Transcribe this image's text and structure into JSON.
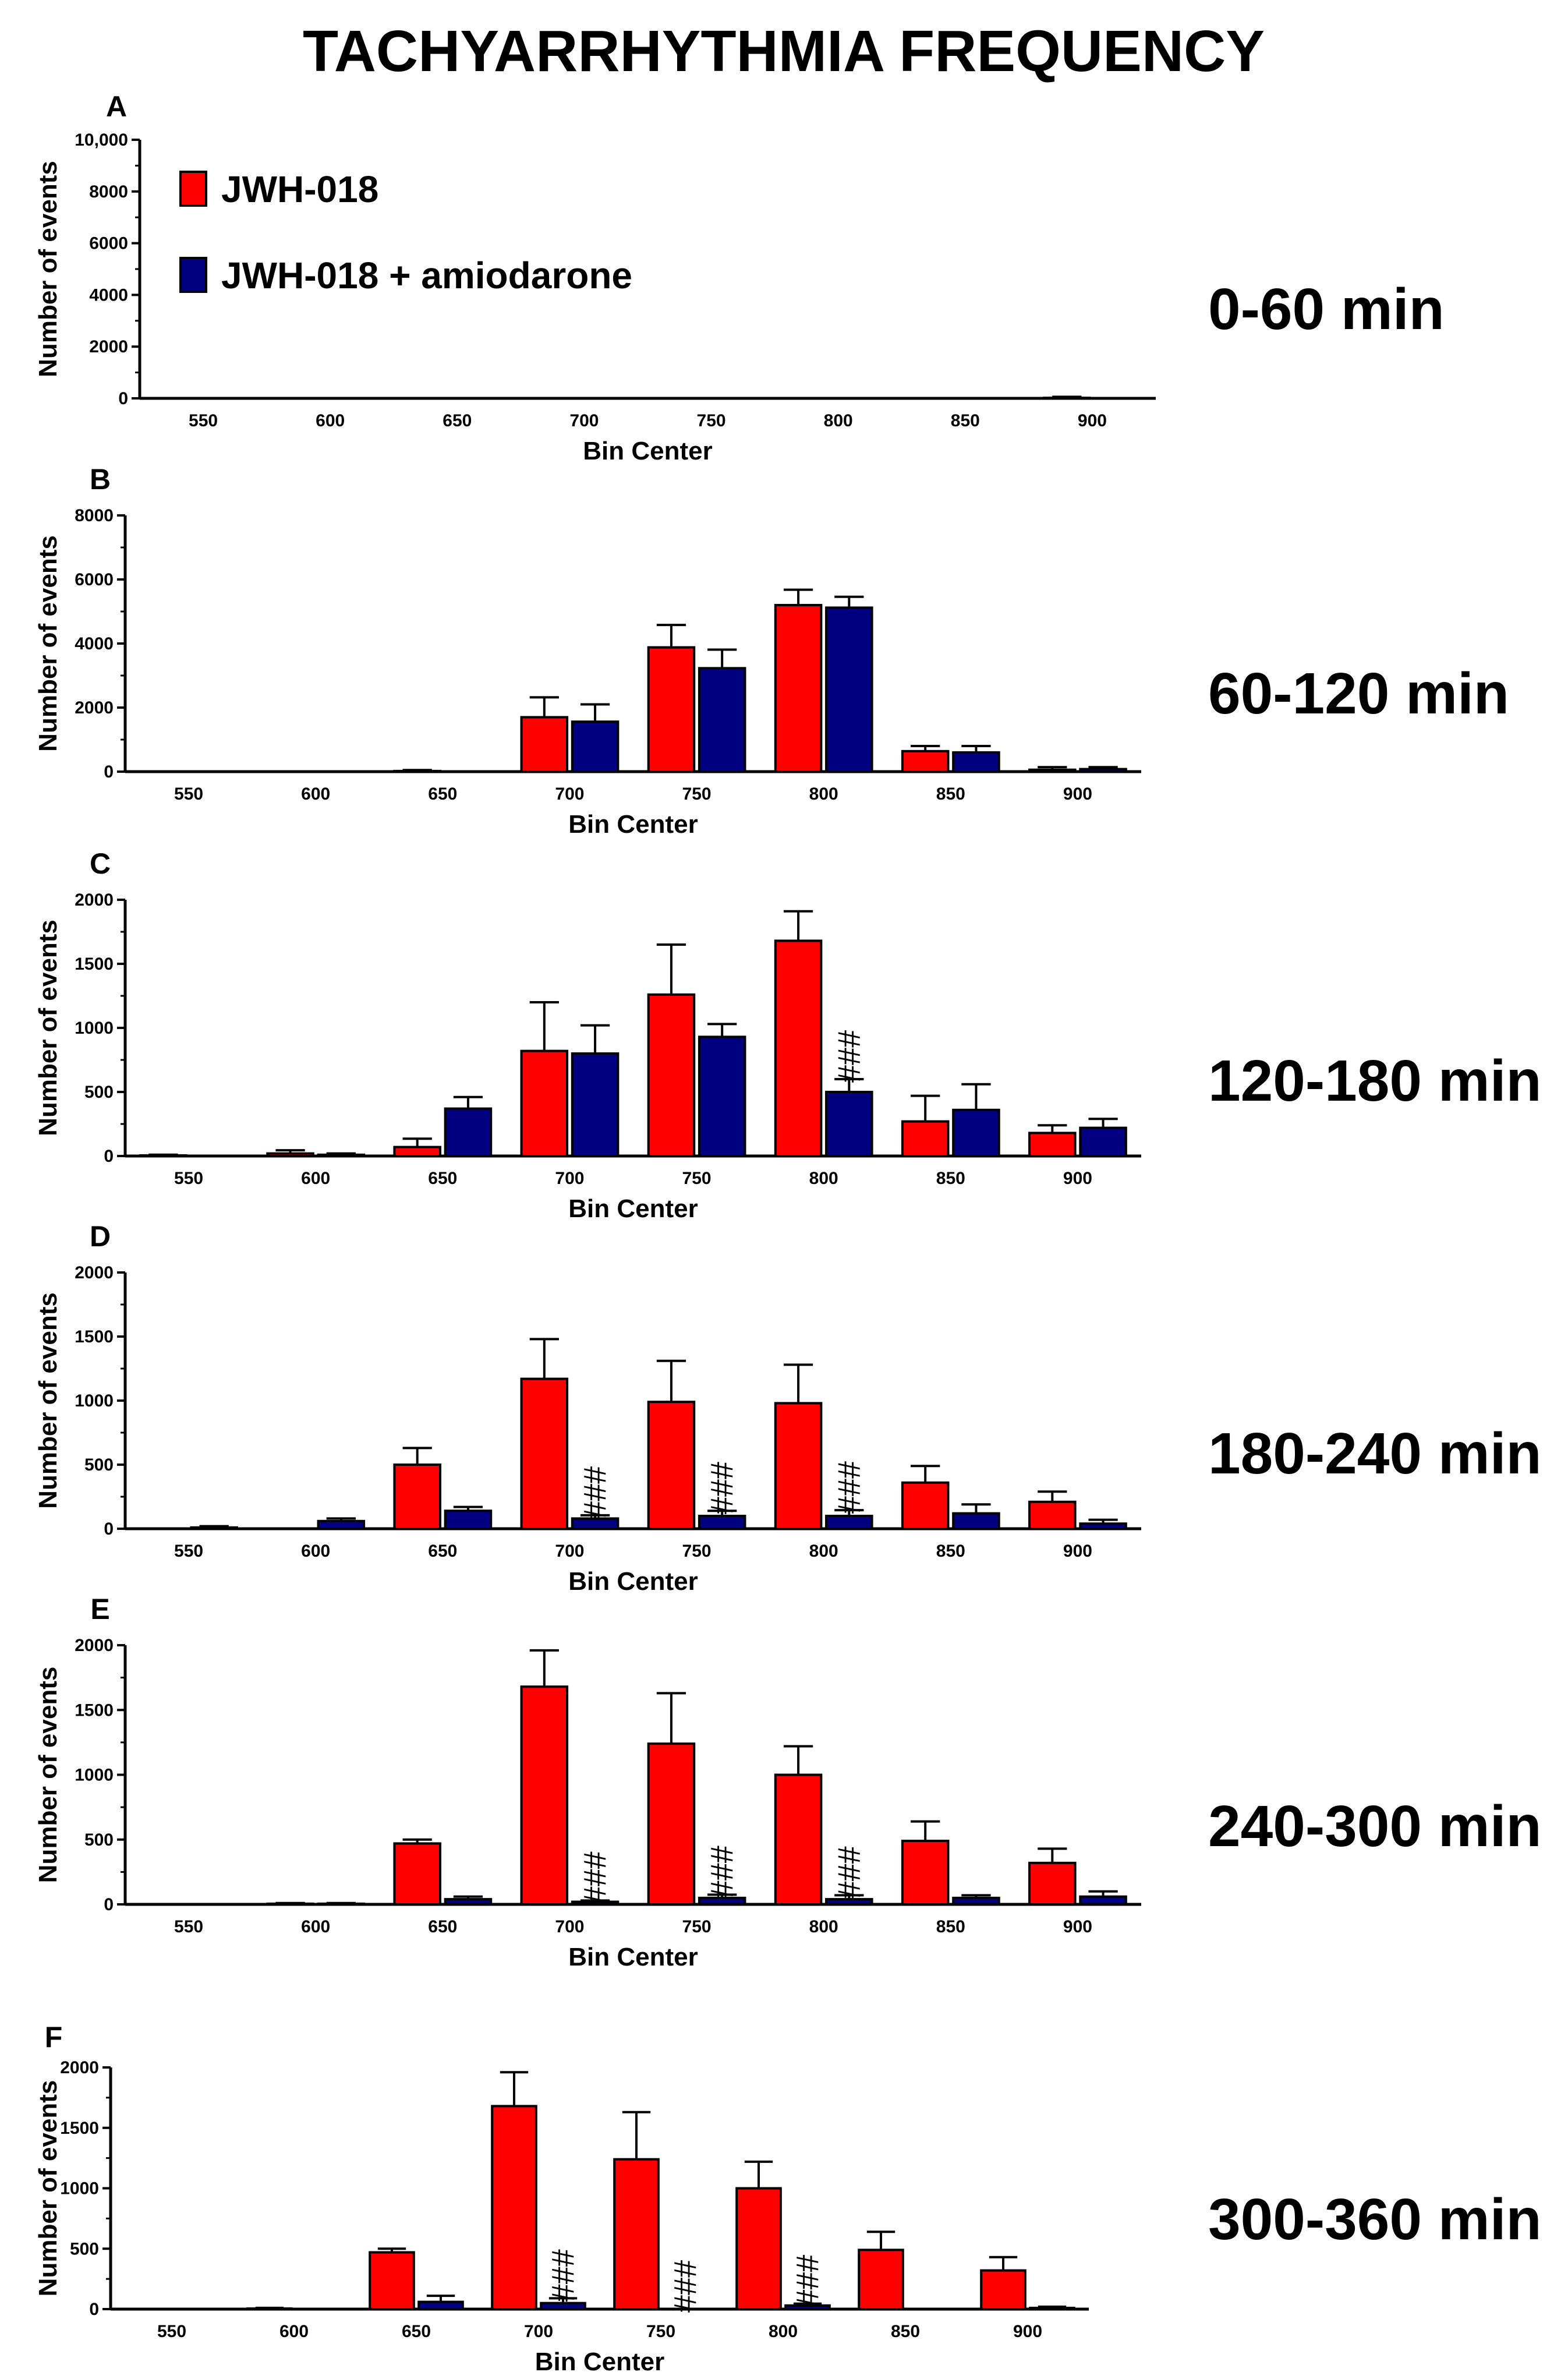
{
  "title": "TACHYARRHYTHMIA FREQUENCY",
  "colors": {
    "series1": "#ff0000",
    "series2": "#000080",
    "axis": "#000000"
  },
  "legend": [
    {
      "name": "JWH-018",
      "color": "#ff0000"
    },
    {
      "name": "JWH-018 + amiodarone",
      "color": "#000080"
    }
  ],
  "chart_data": [
    {
      "type": "bar",
      "panel": "A",
      "time_label": "0-60 min",
      "xlabel": "Bin Center",
      "ylabel": "Number of events",
      "categories": [
        "550",
        "600",
        "650",
        "700",
        "750",
        "800",
        "850",
        "900"
      ],
      "ylim": [
        0,
        10000
      ],
      "yticks": [
        0,
        2000,
        4000,
        6000,
        8000,
        10000
      ],
      "ytick_labels": [
        "0",
        "2000",
        "4000",
        "6000",
        "8000",
        "10,000"
      ],
      "legend": "top-left",
      "series": [
        {
          "name": "JWH-018",
          "values": [
            0,
            0,
            0,
            0,
            0,
            0,
            0,
            20
          ],
          "errors": [
            0,
            0,
            0,
            0,
            0,
            0,
            0,
            40
          ]
        },
        {
          "name": "JWH-018 + amiodarone",
          "values": [
            0,
            0,
            0,
            0,
            0,
            0,
            0,
            0
          ],
          "errors": [
            0,
            0,
            0,
            0,
            0,
            0,
            0,
            0
          ]
        }
      ],
      "annotations": []
    },
    {
      "type": "bar",
      "panel": "B",
      "time_label": "60-120 min",
      "xlabel": "Bin Center",
      "ylabel": "Number of events",
      "categories": [
        "550",
        "600",
        "650",
        "700",
        "750",
        "800",
        "850",
        "900"
      ],
      "ylim": [
        0,
        8000
      ],
      "yticks": [
        0,
        2000,
        4000,
        6000,
        8000
      ],
      "ytick_labels": [
        "0",
        "2000",
        "4000",
        "6000",
        "8000"
      ],
      "series": [
        {
          "name": "JWH-018",
          "values": [
            0,
            0,
            20,
            1700,
            3880,
            5200,
            640,
            60
          ],
          "errors": [
            0,
            0,
            30,
            620,
            700,
            480,
            160,
            80
          ]
        },
        {
          "name": "JWH-018 + amiodarone",
          "values": [
            0,
            0,
            0,
            1560,
            3230,
            5120,
            600,
            80
          ],
          "errors": [
            0,
            0,
            0,
            540,
            580,
            340,
            200,
            60
          ]
        }
      ],
      "annotations": []
    },
    {
      "type": "bar",
      "panel": "C",
      "time_label": "120-180 min",
      "xlabel": "Bin Center",
      "ylabel": "Number of events",
      "categories": [
        "550",
        "600",
        "650",
        "700",
        "750",
        "800",
        "850",
        "900"
      ],
      "ylim": [
        0,
        2000
      ],
      "yticks": [
        0,
        500,
        1000,
        1500,
        2000
      ],
      "ytick_labels": [
        "0",
        "500",
        "1000",
        "1500",
        "2000"
      ],
      "series": [
        {
          "name": "JWH-018",
          "values": [
            5,
            20,
            70,
            820,
            1260,
            1680,
            270,
            180
          ],
          "errors": [
            5,
            25,
            65,
            380,
            390,
            230,
            200,
            60
          ]
        },
        {
          "name": "JWH-018 + amiodarone",
          "values": [
            0,
            10,
            370,
            800,
            930,
            500,
            360,
            220
          ],
          "errors": [
            0,
            10,
            90,
            220,
            100,
            100,
            200,
            70
          ]
        }
      ],
      "annotations": [
        {
          "text": "###",
          "category": "800",
          "series": "JWH-018 + amiodarone"
        }
      ]
    },
    {
      "type": "bar",
      "panel": "D",
      "time_label": "180-240 min",
      "xlabel": "Bin Center",
      "ylabel": "Number of events",
      "categories": [
        "550",
        "600",
        "650",
        "700",
        "750",
        "800",
        "850",
        "900"
      ],
      "ylim": [
        0,
        2000
      ],
      "yticks": [
        0,
        500,
        1000,
        1500,
        2000
      ],
      "ytick_labels": [
        "0",
        "500",
        "1000",
        "1500",
        "2000"
      ],
      "series": [
        {
          "name": "JWH-018",
          "values": [
            0,
            0,
            500,
            1170,
            990,
            980,
            360,
            210
          ],
          "errors": [
            0,
            0,
            130,
            310,
            320,
            300,
            130,
            80
          ]
        },
        {
          "name": "JWH-018 + amiodarone",
          "values": [
            10,
            60,
            140,
            80,
            100,
            100,
            120,
            40
          ],
          "errors": [
            10,
            20,
            30,
            25,
            40,
            45,
            70,
            30
          ]
        }
      ],
      "annotations": [
        {
          "text": "###",
          "category": "700",
          "series": "JWH-018 + amiodarone"
        },
        {
          "text": "###",
          "category": "750",
          "series": "JWH-018 + amiodarone"
        },
        {
          "text": "###",
          "category": "800",
          "series": "JWH-018 + amiodarone"
        }
      ]
    },
    {
      "type": "bar",
      "panel": "E",
      "time_label": "240-300 min",
      "xlabel": "Bin Center",
      "ylabel": "Number of events",
      "categories": [
        "550",
        "600",
        "650",
        "700",
        "750",
        "800",
        "850",
        "900"
      ],
      "ylim": [
        0,
        2000
      ],
      "yticks": [
        0,
        500,
        1000,
        1500,
        2000
      ],
      "ytick_labels": [
        "0",
        "500",
        "1000",
        "1500",
        "2000"
      ],
      "series": [
        {
          "name": "JWH-018",
          "values": [
            0,
            5,
            470,
            1680,
            1240,
            1000,
            490,
            320
          ],
          "errors": [
            0,
            5,
            30,
            280,
            390,
            220,
            150,
            110
          ]
        },
        {
          "name": "JWH-018 + amiodarone",
          "values": [
            0,
            5,
            40,
            20,
            50,
            40,
            50,
            60
          ],
          "errors": [
            0,
            5,
            20,
            10,
            25,
            30,
            20,
            40
          ]
        }
      ],
      "annotations": [
        {
          "text": "###",
          "category": "700",
          "series": "JWH-018 + amiodarone"
        },
        {
          "text": "###",
          "category": "750",
          "series": "JWH-018 + amiodarone"
        },
        {
          "text": "###",
          "category": "800",
          "series": "JWH-018 + amiodarone"
        }
      ]
    },
    {
      "type": "bar",
      "panel": "F",
      "time_label": "300-360 min",
      "xlabel": "Bin Center",
      "ylabel": "Number of events",
      "categories": [
        "550",
        "600",
        "650",
        "700",
        "750",
        "800",
        "850",
        "900"
      ],
      "ylim": [
        0,
        2000
      ],
      "yticks": [
        0,
        500,
        1000,
        1500,
        2000
      ],
      "ytick_labels": [
        "0",
        "500",
        "1000",
        "1500",
        "2000"
      ],
      "series": [
        {
          "name": "JWH-018",
          "values": [
            0,
            5,
            470,
            1680,
            1240,
            1000,
            490,
            320
          ],
          "errors": [
            0,
            5,
            30,
            280,
            390,
            220,
            150,
            110
          ]
        },
        {
          "name": "JWH-018 + amiodarone",
          "values": [
            0,
            0,
            60,
            50,
            0,
            30,
            0,
            10
          ],
          "errors": [
            0,
            0,
            50,
            40,
            0,
            15,
            0,
            10
          ]
        }
      ],
      "annotations": [
        {
          "text": "###",
          "category": "700",
          "series": "JWH-018 + amiodarone"
        },
        {
          "text": "###",
          "category": "750",
          "series": "JWH-018 + amiodarone"
        },
        {
          "text": "###",
          "category": "800",
          "series": "JWH-018 + amiodarone"
        }
      ]
    }
  ]
}
